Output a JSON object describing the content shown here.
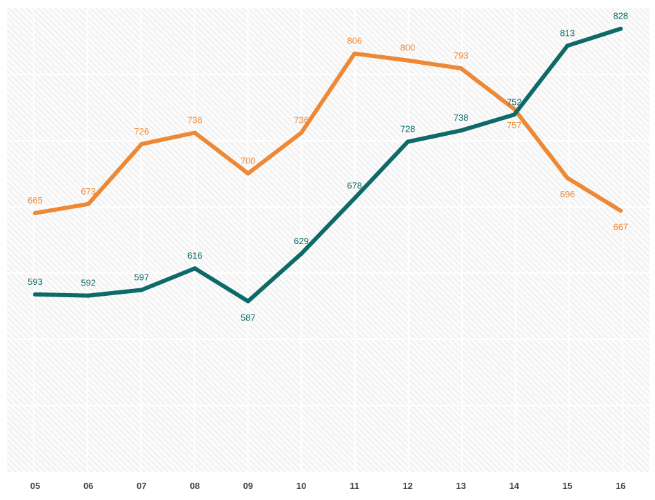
{
  "chart_data": {
    "type": "line",
    "title": "",
    "xlabel": "",
    "ylabel": "",
    "categories": [
      "05",
      "06",
      "07",
      "08",
      "09",
      "10",
      "11",
      "12",
      "13",
      "14",
      "15",
      "16"
    ],
    "ylim": [
      510,
      840
    ],
    "grid": true,
    "legend": "none",
    "series": [
      {
        "name": "orange-series",
        "color": "#ED8936",
        "values": [
          665,
          673,
          726,
          736,
          700,
          736,
          806,
          800,
          793,
          757,
          696,
          667
        ],
        "labels": [
          "665",
          "673",
          "726",
          "736",
          "700",
          "736",
          "806",
          "800",
          "793",
          "757",
          "696",
          "667"
        ]
      },
      {
        "name": "teal-series",
        "color": "#0E6A68",
        "values": [
          593,
          592,
          597,
          616,
          587,
          629,
          678,
          728,
          738,
          752,
          813,
          828
        ],
        "labels": [
          "593",
          "592",
          "597",
          "616",
          "587",
          "629",
          "678",
          "728",
          "738",
          "752",
          "813",
          "828"
        ]
      }
    ]
  }
}
